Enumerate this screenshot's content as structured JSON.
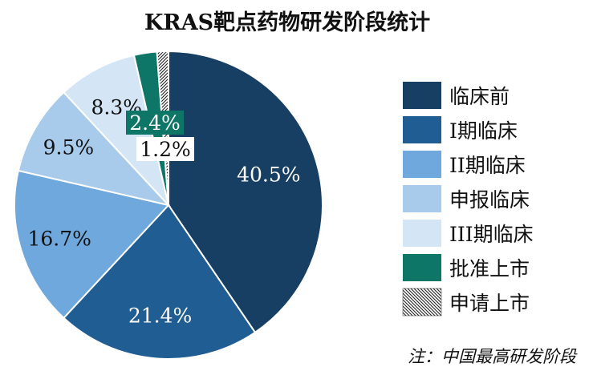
{
  "chart_data": {
    "type": "pie",
    "title": "KRAS靶点药物研发阶段统计",
    "note": "注：中国最高研发阶段",
    "legend_position": "right",
    "slices": [
      {
        "name": "临床前",
        "value": 40.5,
        "label": "40.5%",
        "color": "#173f63"
      },
      {
        "name": "I期临床",
        "value": 21.4,
        "label": "21.4%",
        "color": "#1f5d92"
      },
      {
        "name": "II期临床",
        "value": 16.7,
        "label": "16.7%",
        "color": "#6fa8dc"
      },
      {
        "name": "申报临床",
        "value": 9.5,
        "label": "9.5%",
        "color": "#a8cbec"
      },
      {
        "name": "III期临床",
        "value": 8.3,
        "label": "8.3%",
        "color": "#d4e5f5"
      },
      {
        "name": "批准上市",
        "value": 2.4,
        "label": "2.4%",
        "color": "#0e7666"
      },
      {
        "name": "申请上市",
        "value": 1.2,
        "label": "1.2%",
        "color": "pattern"
      }
    ]
  }
}
